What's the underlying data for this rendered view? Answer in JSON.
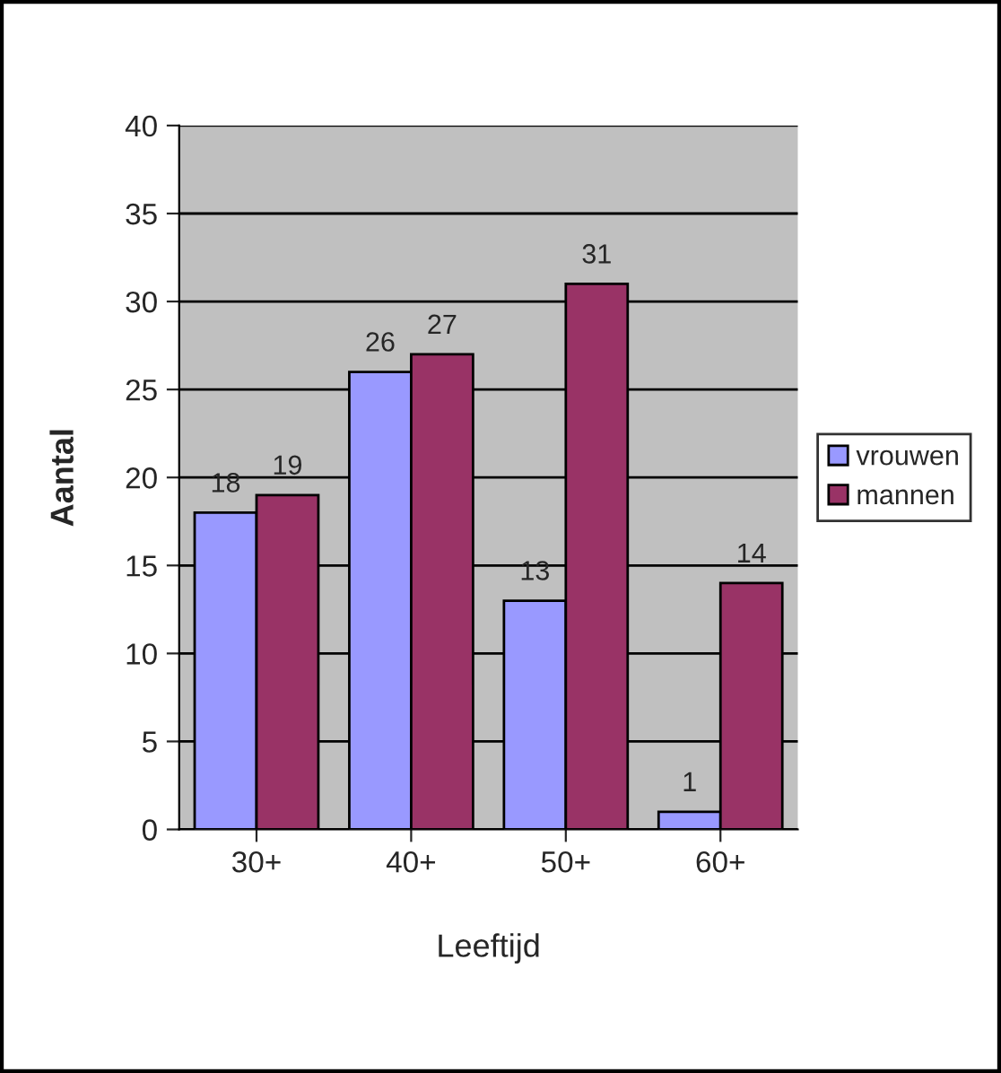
{
  "chart_data": {
    "type": "bar",
    "xlabel": "Leeftijd",
    "ylabel": "Aantal",
    "categories": [
      "30+",
      "40+",
      "50+",
      "60+"
    ],
    "series": [
      {
        "name": "vrouwen",
        "color": "#9999ff",
        "values": [
          18,
          26,
          13,
          1
        ]
      },
      {
        "name": "mannen",
        "color": "#993366",
        "values": [
          19,
          27,
          31,
          14
        ]
      }
    ],
    "ylim": [
      0,
      40
    ],
    "yticks": [
      0,
      5,
      10,
      15,
      20,
      25,
      30,
      35,
      40
    ],
    "grid": "y",
    "legend": "right",
    "data_labels": true
  }
}
